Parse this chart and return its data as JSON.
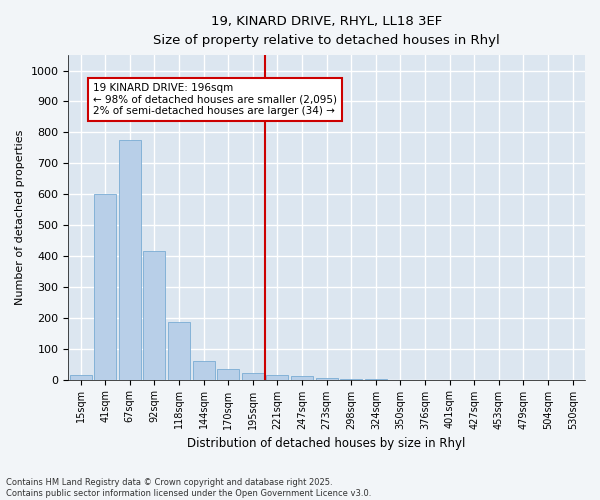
{
  "title1": "19, KINARD DRIVE, RHYL, LL18 3EF",
  "title2": "Size of property relative to detached houses in Rhyl",
  "xlabel": "Distribution of detached houses by size in Rhyl",
  "ylabel": "Number of detached properties",
  "categories": [
    "15sqm",
    "41sqm",
    "67sqm",
    "92sqm",
    "118sqm",
    "144sqm",
    "170sqm",
    "195sqm",
    "221sqm",
    "247sqm",
    "273sqm",
    "298sqm",
    "324sqm",
    "350sqm",
    "376sqm",
    "401sqm",
    "427sqm",
    "453sqm",
    "479sqm",
    "504sqm",
    "530sqm"
  ],
  "values": [
    15,
    600,
    775,
    415,
    185,
    60,
    35,
    20,
    15,
    10,
    5,
    3,
    1,
    0,
    0,
    0,
    0,
    0,
    0,
    0,
    0
  ],
  "bar_color": "#b8cfe8",
  "bar_edge_color": "#7aacd4",
  "vline_color": "#cc0000",
  "annotation_text": "19 KINARD DRIVE: 196sqm\n← 98% of detached houses are smaller (2,095)\n2% of semi-detached houses are larger (34) →",
  "annotation_box_color": "#cc0000",
  "ylim": [
    0,
    1050
  ],
  "yticks": [
    0,
    100,
    200,
    300,
    400,
    500,
    600,
    700,
    800,
    900,
    1000
  ],
  "background_color": "#dce6f0",
  "grid_color": "#ffffff",
  "fig_bg_color": "#f2f5f8",
  "footer": "Contains HM Land Registry data © Crown copyright and database right 2025.\nContains public sector information licensed under the Open Government Licence v3.0."
}
